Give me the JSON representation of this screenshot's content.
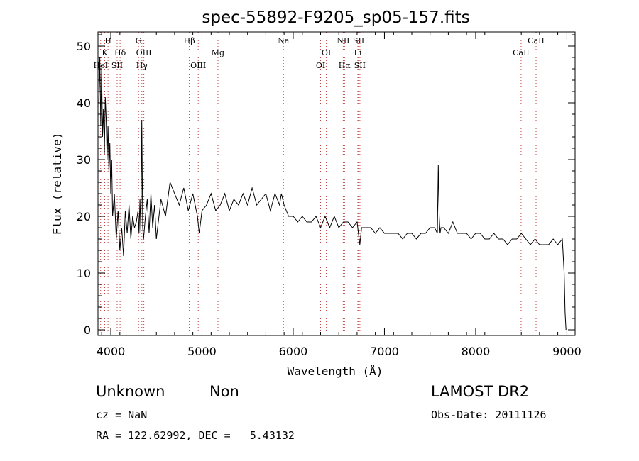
{
  "chart_data": {
    "type": "line",
    "title": "spec-55892-F9205_sp05-157.fits",
    "xlabel": "Wavelength (Å)",
    "ylabel": "Flux (relative)",
    "xlim": [
      3860,
      9090
    ],
    "ylim": [
      -1,
      52.5
    ],
    "x_ticks": [
      "4000",
      "5000",
      "6000",
      "7000",
      "8000",
      "9000"
    ],
    "y_ticks": [
      "0",
      "10",
      "20",
      "30",
      "40",
      "50"
    ],
    "grid": false,
    "spectral_lines": [
      {
        "label": "HeI",
        "x": 3889,
        "row": 3
      },
      {
        "label": "H",
        "x": 3970,
        "row": 1
      },
      {
        "label": "K",
        "x": 3934,
        "row": 2
      },
      {
        "label": "SII",
        "x": 4070,
        "row": 3
      },
      {
        "label": "Hδ",
        "x": 4102,
        "row": 2
      },
      {
        "label": "G",
        "x": 4305,
        "row": 1
      },
      {
        "label": "OIII",
        "x": 4363,
        "row": 2
      },
      {
        "label": "Hγ",
        "x": 4341,
        "row": 3
      },
      {
        "label": "Hβ",
        "x": 4861,
        "row": 1
      },
      {
        "label": "OIII",
        "x": 4959,
        "row": 3
      },
      {
        "label": "Mg",
        "x": 5175,
        "row": 2
      },
      {
        "label": "Na",
        "x": 5893,
        "row": 1
      },
      {
        "label": "OI",
        "x": 6300,
        "row": 3
      },
      {
        "label": "OI",
        "x": 6363,
        "row": 2
      },
      {
        "label": "NII",
        "x": 6548,
        "row": 1
      },
      {
        "label": "Hα",
        "x": 6563,
        "row": 3
      },
      {
        "label": "SII",
        "x": 6717,
        "row": 1
      },
      {
        "label": "Li",
        "x": 6708,
        "row": 2
      },
      {
        "label": "SII",
        "x": 6731,
        "row": 3
      },
      {
        "label": "CaII",
        "x": 8498,
        "row": 2
      },
      {
        "label": "CaII",
        "x": 8662,
        "row": 1
      }
    ],
    "series": [
      {
        "x": [
          3870,
          3880,
          3890,
          3900,
          3910,
          3920,
          3930,
          3940,
          3950,
          3960,
          3970,
          3980,
          3990,
          4000,
          4010,
          4020,
          4040,
          4060,
          4080,
          4100,
          4120,
          4140,
          4160,
          4180,
          4200,
          4220,
          4240,
          4260,
          4280,
          4300,
          4310,
          4320,
          4330,
          4340,
          4350,
          4360,
          4380,
          4400,
          4420,
          4440,
          4460,
          4480,
          4500,
          4550,
          4600,
          4650,
          4700,
          4750,
          4800,
          4850,
          4900,
          4950,
          4970,
          5000,
          5050,
          5100,
          5150,
          5200,
          5250,
          5300,
          5350,
          5400,
          5450,
          5500,
          5550,
          5600,
          5650,
          5700,
          5750,
          5800,
          5850,
          5870,
          5900,
          5950,
          6000,
          6050,
          6100,
          6150,
          6200,
          6250,
          6300,
          6350,
          6400,
          6450,
          6500,
          6550,
          6600,
          6650,
          6700,
          6730,
          6750,
          6800,
          6850,
          6900,
          6950,
          7000,
          7050,
          7100,
          7150,
          7200,
          7250,
          7300,
          7350,
          7400,
          7450,
          7500,
          7550,
          7580,
          7590,
          7600,
          7610,
          7620,
          7650,
          7700,
          7750,
          7800,
          7850,
          7900,
          7950,
          8000,
          8050,
          8100,
          8150,
          8200,
          8250,
          8300,
          8350,
          8400,
          8450,
          8500,
          8550,
          8600,
          8650,
          8700,
          8750,
          8800,
          8850,
          8900,
          8950,
          8970,
          8980,
          8990
        ],
        "values": [
          40,
          48,
          36,
          46,
          34,
          39,
          31,
          41,
          37,
          30,
          36,
          28,
          33,
          24,
          30,
          20,
          24,
          16,
          21,
          14,
          18,
          13,
          21,
          17,
          22,
          16,
          20,
          18,
          19,
          21,
          17,
          23,
          17,
          37,
          18,
          16,
          20,
          23,
          17,
          24,
          18,
          22,
          16,
          23,
          20,
          26,
          24,
          22,
          25,
          21,
          24,
          20,
          17,
          21,
          22,
          24,
          21,
          22,
          24,
          21,
          23,
          22,
          24,
          22,
          25,
          22,
          23,
          24,
          21,
          24,
          22,
          24,
          22,
          20,
          20,
          19,
          20,
          19,
          19,
          20,
          18,
          20,
          18,
          20,
          18,
          19,
          19,
          18,
          19,
          15,
          18,
          18,
          18,
          17,
          18,
          17,
          17,
          17,
          17,
          16,
          17,
          17,
          16,
          17,
          17,
          18,
          18,
          17,
          29,
          20,
          17,
          18,
          18,
          17,
          19,
          17,
          17,
          17,
          16,
          17,
          17,
          16,
          16,
          17,
          16,
          16,
          15,
          16,
          16,
          17,
          16,
          15,
          16,
          15,
          15,
          15,
          16,
          15,
          16,
          10,
          3,
          0
        ]
      }
    ]
  },
  "info": {
    "class": "Unknown",
    "subclass": "Non",
    "survey": "LAMOST DR2",
    "cz": "cz = NaN",
    "obs_date": "Obs-Date: 20111126",
    "radec": "RA = 122.62992, DEC =   5.43132"
  }
}
